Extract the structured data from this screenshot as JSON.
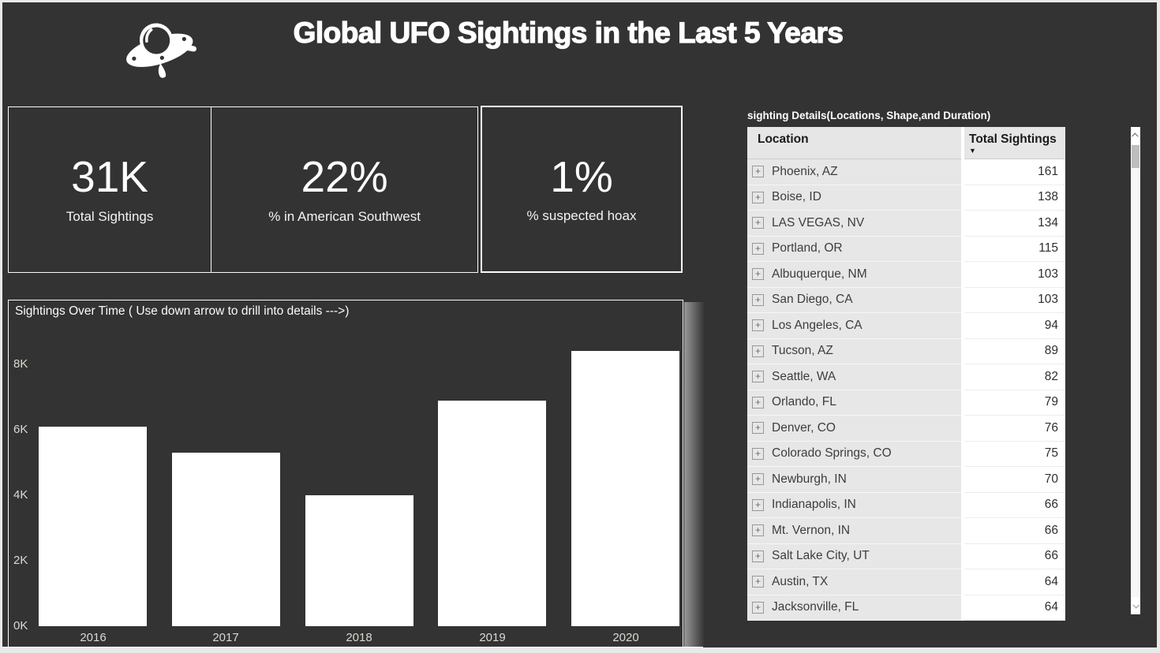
{
  "header": {
    "title": "Global UFO Sightings in the Last 5 Years",
    "icon": "ufo-flying-saucer"
  },
  "kpis": [
    {
      "value": "31K",
      "label": "Total Sightings"
    },
    {
      "value": "22%",
      "label": "% in American Southwest"
    },
    {
      "value": "1%",
      "label": "% suspected hoax"
    }
  ],
  "chart_data": {
    "type": "bar",
    "title": "Sightings Over Time ( Use down arrow to drill into details --->)",
    "categories": [
      "2016",
      "2017",
      "2018",
      "2019",
      "2020"
    ],
    "values": [
      6100,
      5300,
      4000,
      6900,
      8400
    ],
    "xlabel": "",
    "ylabel": "",
    "ylim": [
      0,
      9000
    ],
    "yticks": [
      "0K",
      "2K",
      "4K",
      "6K",
      "8K"
    ],
    "ytick_values": [
      0,
      2000,
      4000,
      6000,
      8000
    ],
    "grid": false,
    "legend": "none",
    "bar_color": "#ffffff"
  },
  "table": {
    "title": "sighting Details(Locations, Shape,and Duration)",
    "columns": [
      "Location",
      "Total Sightings"
    ],
    "sort_column": "Total Sightings",
    "sort_direction": "descending",
    "sort_indicator": "▼",
    "expand_glyph": "+",
    "rows": [
      {
        "location": "Phoenix, AZ",
        "total": "161"
      },
      {
        "location": "Boise, ID",
        "total": "138"
      },
      {
        "location": "LAS VEGAS, NV",
        "total": "134"
      },
      {
        "location": "Portland, OR",
        "total": "115"
      },
      {
        "location": "Albuquerque, NM",
        "total": "103"
      },
      {
        "location": "San Diego, CA",
        "total": "103"
      },
      {
        "location": "Los Angeles, CA",
        "total": "94"
      },
      {
        "location": "Tucson, AZ",
        "total": "89"
      },
      {
        "location": "Seattle, WA",
        "total": "82"
      },
      {
        "location": "Orlando, FL",
        "total": "79"
      },
      {
        "location": "Denver, CO",
        "total": "76"
      },
      {
        "location": "Colorado Springs, CO",
        "total": "75"
      },
      {
        "location": "Newburgh, IN",
        "total": "70"
      },
      {
        "location": "Indianapolis, IN",
        "total": "66"
      },
      {
        "location": "Mt. Vernon, IN",
        "total": "66"
      },
      {
        "location": "Salt Lake City, UT",
        "total": "66"
      },
      {
        "location": "Austin, TX",
        "total": "64"
      },
      {
        "location": "Jacksonville, FL",
        "total": "64"
      }
    ]
  },
  "colors": {
    "canvas_background": "#333333",
    "card_border": "#ffffff",
    "bar_fill": "#ffffff",
    "table_header_bg": "#e6e6e6",
    "table_location_bg": "#e7e7e7",
    "table_value_bg": "#ffffff",
    "axis_label": "#dcd9d2",
    "text_light": "#ffffff",
    "text_dark": "#1a1a1a"
  }
}
